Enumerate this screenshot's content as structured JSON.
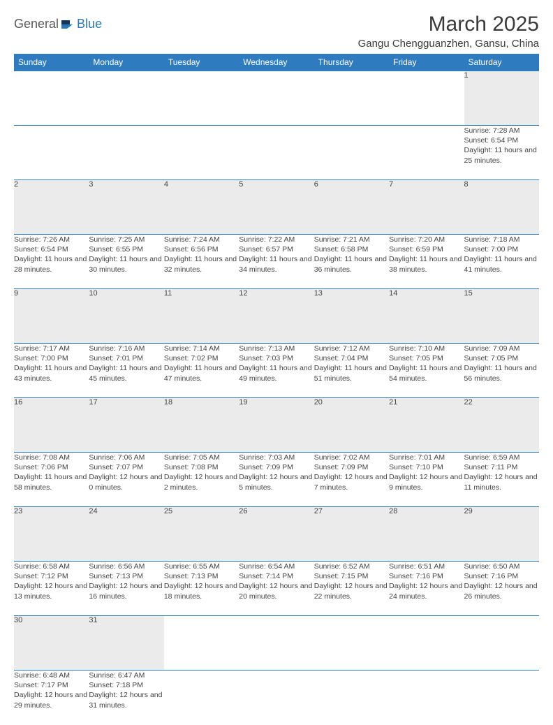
{
  "logo": {
    "general": "General",
    "blue": "Blue"
  },
  "title": "March 2025",
  "location": "Gangu Chengguanzhen, Gansu, China",
  "colors": {
    "header_bg": "#2f7bbf",
    "header_text": "#ffffff",
    "daynum_bg": "#ebebeb",
    "border": "#2f7bbf",
    "text": "#444444",
    "logo_gray": "#5a5a5a",
    "logo_blue": "#2a7ab8"
  },
  "weekdays": [
    "Sunday",
    "Monday",
    "Tuesday",
    "Wednesday",
    "Thursday",
    "Friday",
    "Saturday"
  ],
  "weeks": [
    [
      null,
      null,
      null,
      null,
      null,
      null,
      {
        "n": "1",
        "sr": "7:28 AM",
        "ss": "6:54 PM",
        "dl": "11 hours and 25 minutes."
      }
    ],
    [
      {
        "n": "2",
        "sr": "7:26 AM",
        "ss": "6:54 PM",
        "dl": "11 hours and 28 minutes."
      },
      {
        "n": "3",
        "sr": "7:25 AM",
        "ss": "6:55 PM",
        "dl": "11 hours and 30 minutes."
      },
      {
        "n": "4",
        "sr": "7:24 AM",
        "ss": "6:56 PM",
        "dl": "11 hours and 32 minutes."
      },
      {
        "n": "5",
        "sr": "7:22 AM",
        "ss": "6:57 PM",
        "dl": "11 hours and 34 minutes."
      },
      {
        "n": "6",
        "sr": "7:21 AM",
        "ss": "6:58 PM",
        "dl": "11 hours and 36 minutes."
      },
      {
        "n": "7",
        "sr": "7:20 AM",
        "ss": "6:59 PM",
        "dl": "11 hours and 38 minutes."
      },
      {
        "n": "8",
        "sr": "7:18 AM",
        "ss": "7:00 PM",
        "dl": "11 hours and 41 minutes."
      }
    ],
    [
      {
        "n": "9",
        "sr": "7:17 AM",
        "ss": "7:00 PM",
        "dl": "11 hours and 43 minutes."
      },
      {
        "n": "10",
        "sr": "7:16 AM",
        "ss": "7:01 PM",
        "dl": "11 hours and 45 minutes."
      },
      {
        "n": "11",
        "sr": "7:14 AM",
        "ss": "7:02 PM",
        "dl": "11 hours and 47 minutes."
      },
      {
        "n": "12",
        "sr": "7:13 AM",
        "ss": "7:03 PM",
        "dl": "11 hours and 49 minutes."
      },
      {
        "n": "13",
        "sr": "7:12 AM",
        "ss": "7:04 PM",
        "dl": "11 hours and 51 minutes."
      },
      {
        "n": "14",
        "sr": "7:10 AM",
        "ss": "7:05 PM",
        "dl": "11 hours and 54 minutes."
      },
      {
        "n": "15",
        "sr": "7:09 AM",
        "ss": "7:05 PM",
        "dl": "11 hours and 56 minutes."
      }
    ],
    [
      {
        "n": "16",
        "sr": "7:08 AM",
        "ss": "7:06 PM",
        "dl": "11 hours and 58 minutes."
      },
      {
        "n": "17",
        "sr": "7:06 AM",
        "ss": "7:07 PM",
        "dl": "12 hours and 0 minutes."
      },
      {
        "n": "18",
        "sr": "7:05 AM",
        "ss": "7:08 PM",
        "dl": "12 hours and 2 minutes."
      },
      {
        "n": "19",
        "sr": "7:03 AM",
        "ss": "7:09 PM",
        "dl": "12 hours and 5 minutes."
      },
      {
        "n": "20",
        "sr": "7:02 AM",
        "ss": "7:09 PM",
        "dl": "12 hours and 7 minutes."
      },
      {
        "n": "21",
        "sr": "7:01 AM",
        "ss": "7:10 PM",
        "dl": "12 hours and 9 minutes."
      },
      {
        "n": "22",
        "sr": "6:59 AM",
        "ss": "7:11 PM",
        "dl": "12 hours and 11 minutes."
      }
    ],
    [
      {
        "n": "23",
        "sr": "6:58 AM",
        "ss": "7:12 PM",
        "dl": "12 hours and 13 minutes."
      },
      {
        "n": "24",
        "sr": "6:56 AM",
        "ss": "7:13 PM",
        "dl": "12 hours and 16 minutes."
      },
      {
        "n": "25",
        "sr": "6:55 AM",
        "ss": "7:13 PM",
        "dl": "12 hours and 18 minutes."
      },
      {
        "n": "26",
        "sr": "6:54 AM",
        "ss": "7:14 PM",
        "dl": "12 hours and 20 minutes."
      },
      {
        "n": "27",
        "sr": "6:52 AM",
        "ss": "7:15 PM",
        "dl": "12 hours and 22 minutes."
      },
      {
        "n": "28",
        "sr": "6:51 AM",
        "ss": "7:16 PM",
        "dl": "12 hours and 24 minutes."
      },
      {
        "n": "29",
        "sr": "6:50 AM",
        "ss": "7:16 PM",
        "dl": "12 hours and 26 minutes."
      }
    ],
    [
      {
        "n": "30",
        "sr": "6:48 AM",
        "ss": "7:17 PM",
        "dl": "12 hours and 29 minutes."
      },
      {
        "n": "31",
        "sr": "6:47 AM",
        "ss": "7:18 PM",
        "dl": "12 hours and 31 minutes."
      },
      null,
      null,
      null,
      null,
      null
    ]
  ],
  "labels": {
    "sunrise": "Sunrise: ",
    "sunset": "Sunset: ",
    "daylight": "Daylight: "
  }
}
